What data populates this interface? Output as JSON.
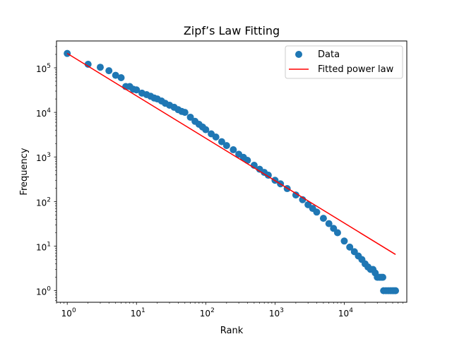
{
  "chart_data": {
    "type": "scatter",
    "title": "Zipf’s Law Fitting",
    "xlabel": "Rank",
    "ylabel": "Frequency",
    "xscale": "log",
    "yscale": "log",
    "xlim": [
      0.7,
      80000
    ],
    "ylim": [
      0.55,
      400000
    ],
    "x_ticks": [
      {
        "value": 1,
        "base": "10",
        "exp": "0"
      },
      {
        "value": 10,
        "base": "10",
        "exp": "1"
      },
      {
        "value": 100,
        "base": "10",
        "exp": "2"
      },
      {
        "value": 1000,
        "base": "10",
        "exp": "3"
      },
      {
        "value": 10000,
        "base": "10",
        "exp": "4"
      }
    ],
    "y_ticks": [
      {
        "value": 1,
        "base": "10",
        "exp": "0"
      },
      {
        "value": 10,
        "base": "10",
        "exp": "1"
      },
      {
        "value": 100,
        "base": "10",
        "exp": "2"
      },
      {
        "value": 1000,
        "base": "10",
        "exp": "3"
      },
      {
        "value": 10000,
        "base": "10",
        "exp": "4"
      },
      {
        "value": 100000,
        "base": "10",
        "exp": "5"
      }
    ],
    "grid": false,
    "legend_position": "upper-right",
    "series": [
      {
        "name": "Data",
        "kind": "scatter",
        "color": "#1f77b4",
        "points": [
          [
            1,
            210000
          ],
          [
            2,
            120000
          ],
          [
            3,
            103000
          ],
          [
            4,
            86000
          ],
          [
            5,
            68000
          ],
          [
            6,
            60000
          ],
          [
            7,
            38000
          ],
          [
            8,
            38000
          ],
          [
            9,
            33000
          ],
          [
            10,
            32000
          ],
          [
            12,
            27000
          ],
          [
            14,
            25000
          ],
          [
            16,
            23000
          ],
          [
            18,
            21000
          ],
          [
            20,
            20000
          ],
          [
            23,
            18000
          ],
          [
            26,
            16000
          ],
          [
            30,
            14500
          ],
          [
            35,
            13000
          ],
          [
            40,
            11500
          ],
          [
            45,
            10500
          ],
          [
            50,
            10000
          ],
          [
            60,
            7800
          ],
          [
            70,
            6300
          ],
          [
            80,
            5400
          ],
          [
            90,
            4700
          ],
          [
            100,
            4100
          ],
          [
            120,
            3300
          ],
          [
            140,
            2800
          ],
          [
            170,
            2200
          ],
          [
            200,
            1800
          ],
          [
            250,
            1450
          ],
          [
            300,
            1150
          ],
          [
            350,
            980
          ],
          [
            400,
            840
          ],
          [
            500,
            650
          ],
          [
            600,
            530
          ],
          [
            700,
            450
          ],
          [
            800,
            390
          ],
          [
            1000,
            300
          ],
          [
            1200,
            250
          ],
          [
            1500,
            195
          ],
          [
            2000,
            140
          ],
          [
            2500,
            110
          ],
          [
            3000,
            85
          ],
          [
            3500,
            70
          ],
          [
            4000,
            58
          ],
          [
            5000,
            42
          ],
          [
            6000,
            32
          ],
          [
            7000,
            25
          ],
          [
            8000,
            20
          ],
          [
            10000,
            13
          ],
          [
            12000,
            9.5
          ],
          [
            14000,
            7.5
          ],
          [
            16000,
            6
          ],
          [
            18000,
            5
          ],
          [
            20000,
            4
          ],
          [
            22000,
            3.4
          ],
          [
            24000,
            3
          ],
          [
            26000,
            3
          ],
          [
            28000,
            2.5
          ],
          [
            30000,
            2
          ],
          [
            32000,
            2
          ],
          [
            34000,
            2
          ],
          [
            36000,
            2
          ],
          [
            37000,
            1
          ],
          [
            40000,
            1
          ],
          [
            43000,
            1
          ],
          [
            46000,
            1
          ],
          [
            49000,
            1
          ],
          [
            52000,
            1
          ],
          [
            55000,
            1
          ]
        ]
      },
      {
        "name": "Fitted power law",
        "kind": "line",
        "color": "#ff0000",
        "points": [
          [
            1,
            210000
          ],
          [
            55000,
            6.5
          ]
        ]
      }
    ]
  }
}
